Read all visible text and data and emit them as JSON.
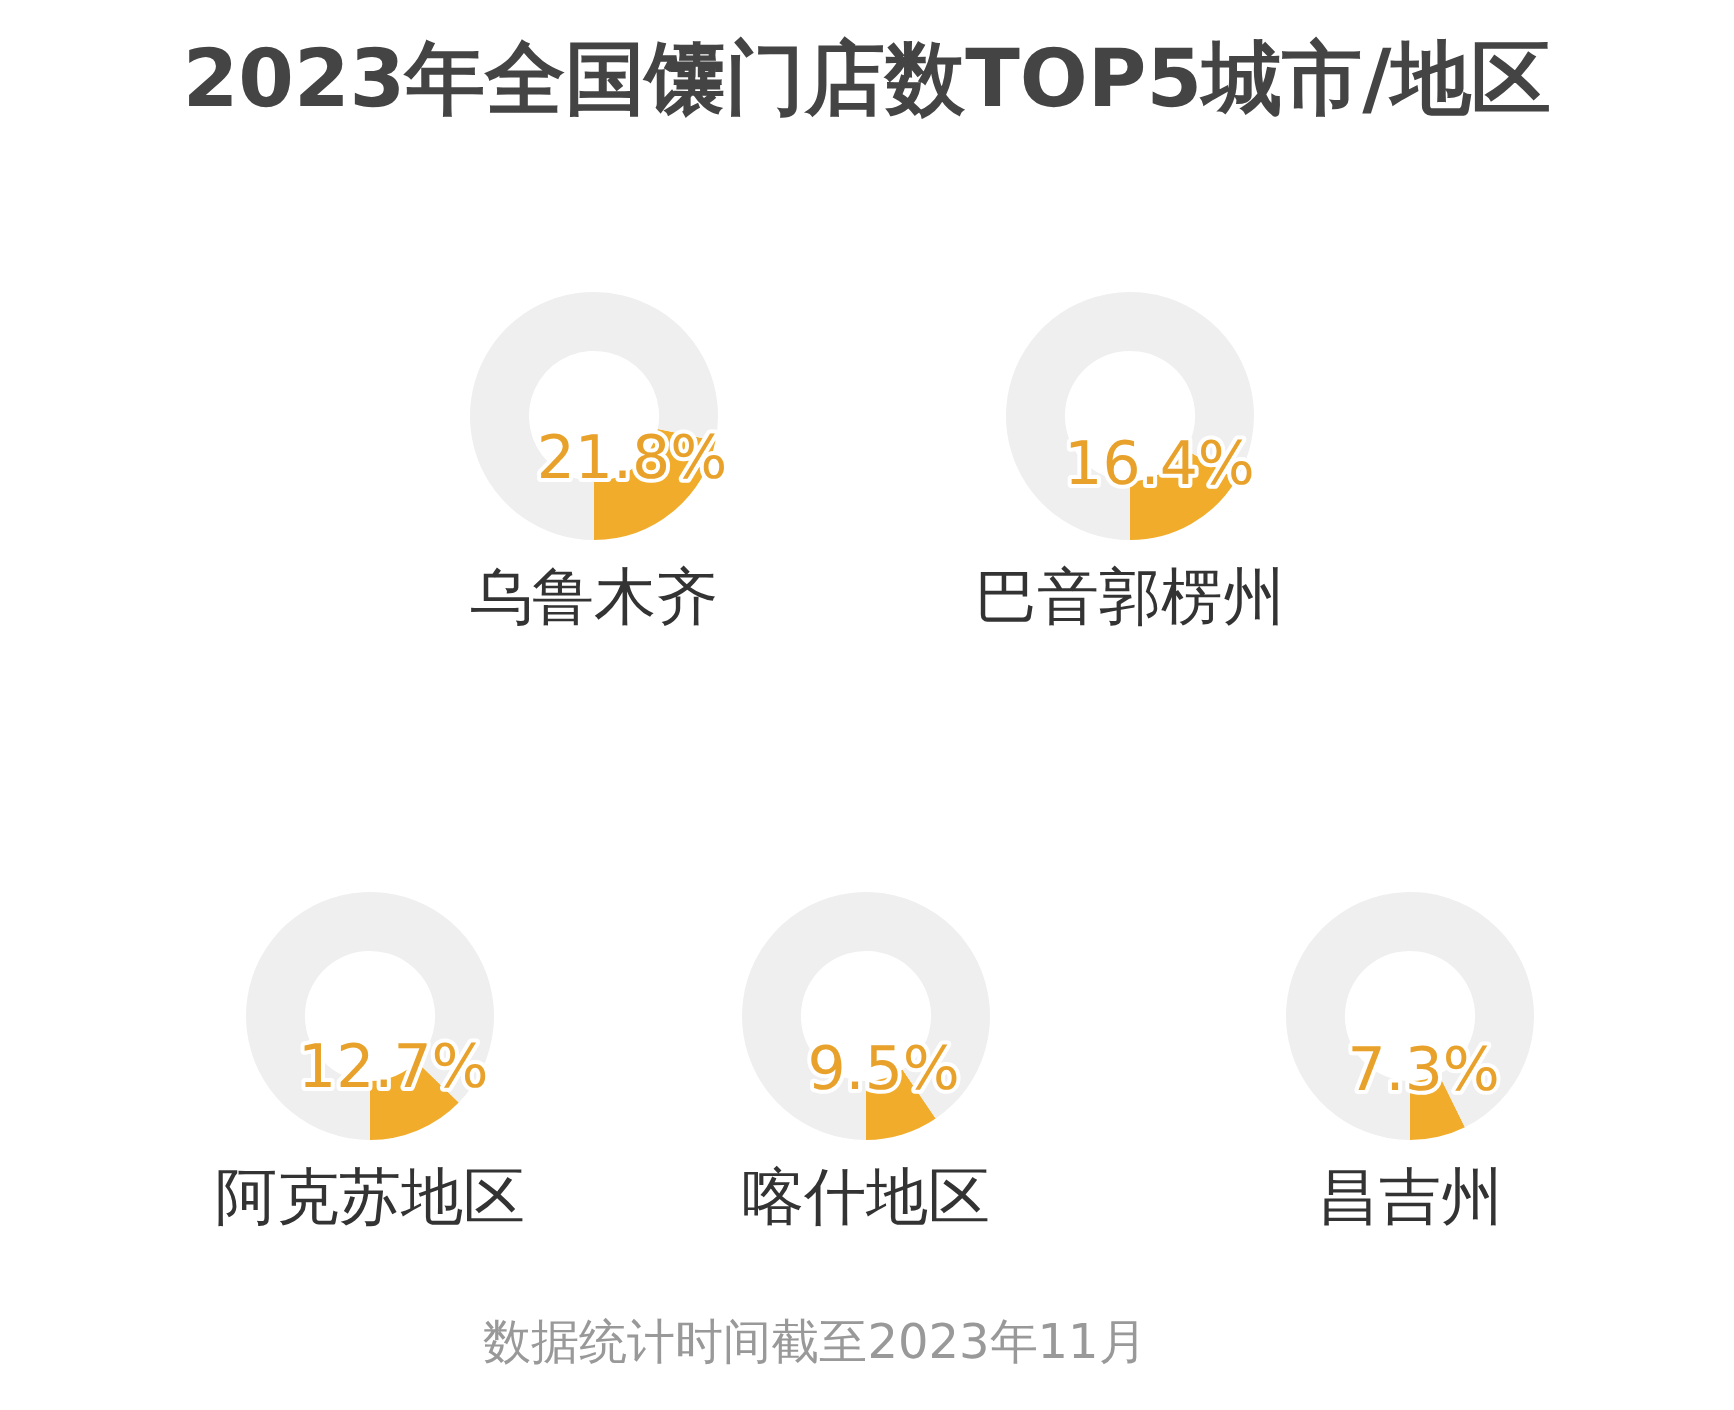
{
  "chart_data": [
    {
      "type": "donut",
      "title": "2023年全国馕门店数TOP5城市/地区",
      "xlabel": "乌鲁木齐",
      "categories": [
        null,
        null
      ],
      "values": [
        21.8,
        78.2
      ],
      "colors": [
        "#f0ac2a",
        "#efefef"
      ],
      "value_labels": [
        "21.8%",
        null
      ]
    },
    {
      "type": "donut",
      "xlabel": "巴音郭楞州",
      "categories": [
        null,
        null
      ],
      "values": [
        16.4,
        83.6
      ],
      "colors": [
        "#f0ac2a",
        "#efefef"
      ],
      "value_labels": [
        "16.4%",
        null
      ]
    },
    {
      "type": "donut",
      "xlabel": "阿克苏地区",
      "categories": [
        null,
        null
      ],
      "values": [
        12.7,
        87.3
      ],
      "colors": [
        "#f0ac2a",
        "#efefef"
      ],
      "value_labels": [
        "12.7%",
        null
      ]
    },
    {
      "type": "donut",
      "xlabel": "喀什地区",
      "categories": [
        null,
        null
      ],
      "values": [
        9.5,
        90.5
      ],
      "colors": [
        "#f0ac2a",
        "#efefef"
      ],
      "value_labels": [
        "9.5%",
        null
      ]
    },
    {
      "type": "donut",
      "xlabel": "昌吉州",
      "categories": [
        null,
        null
      ],
      "values": [
        7.3,
        92.7
      ],
      "colors": [
        "#f0ac2a",
        "#efefef"
      ],
      "value_labels": [
        "7.3%",
        null
      ],
      "annotations": [
        "数据统计时间截至2023年11月"
      ]
    }
  ]
}
